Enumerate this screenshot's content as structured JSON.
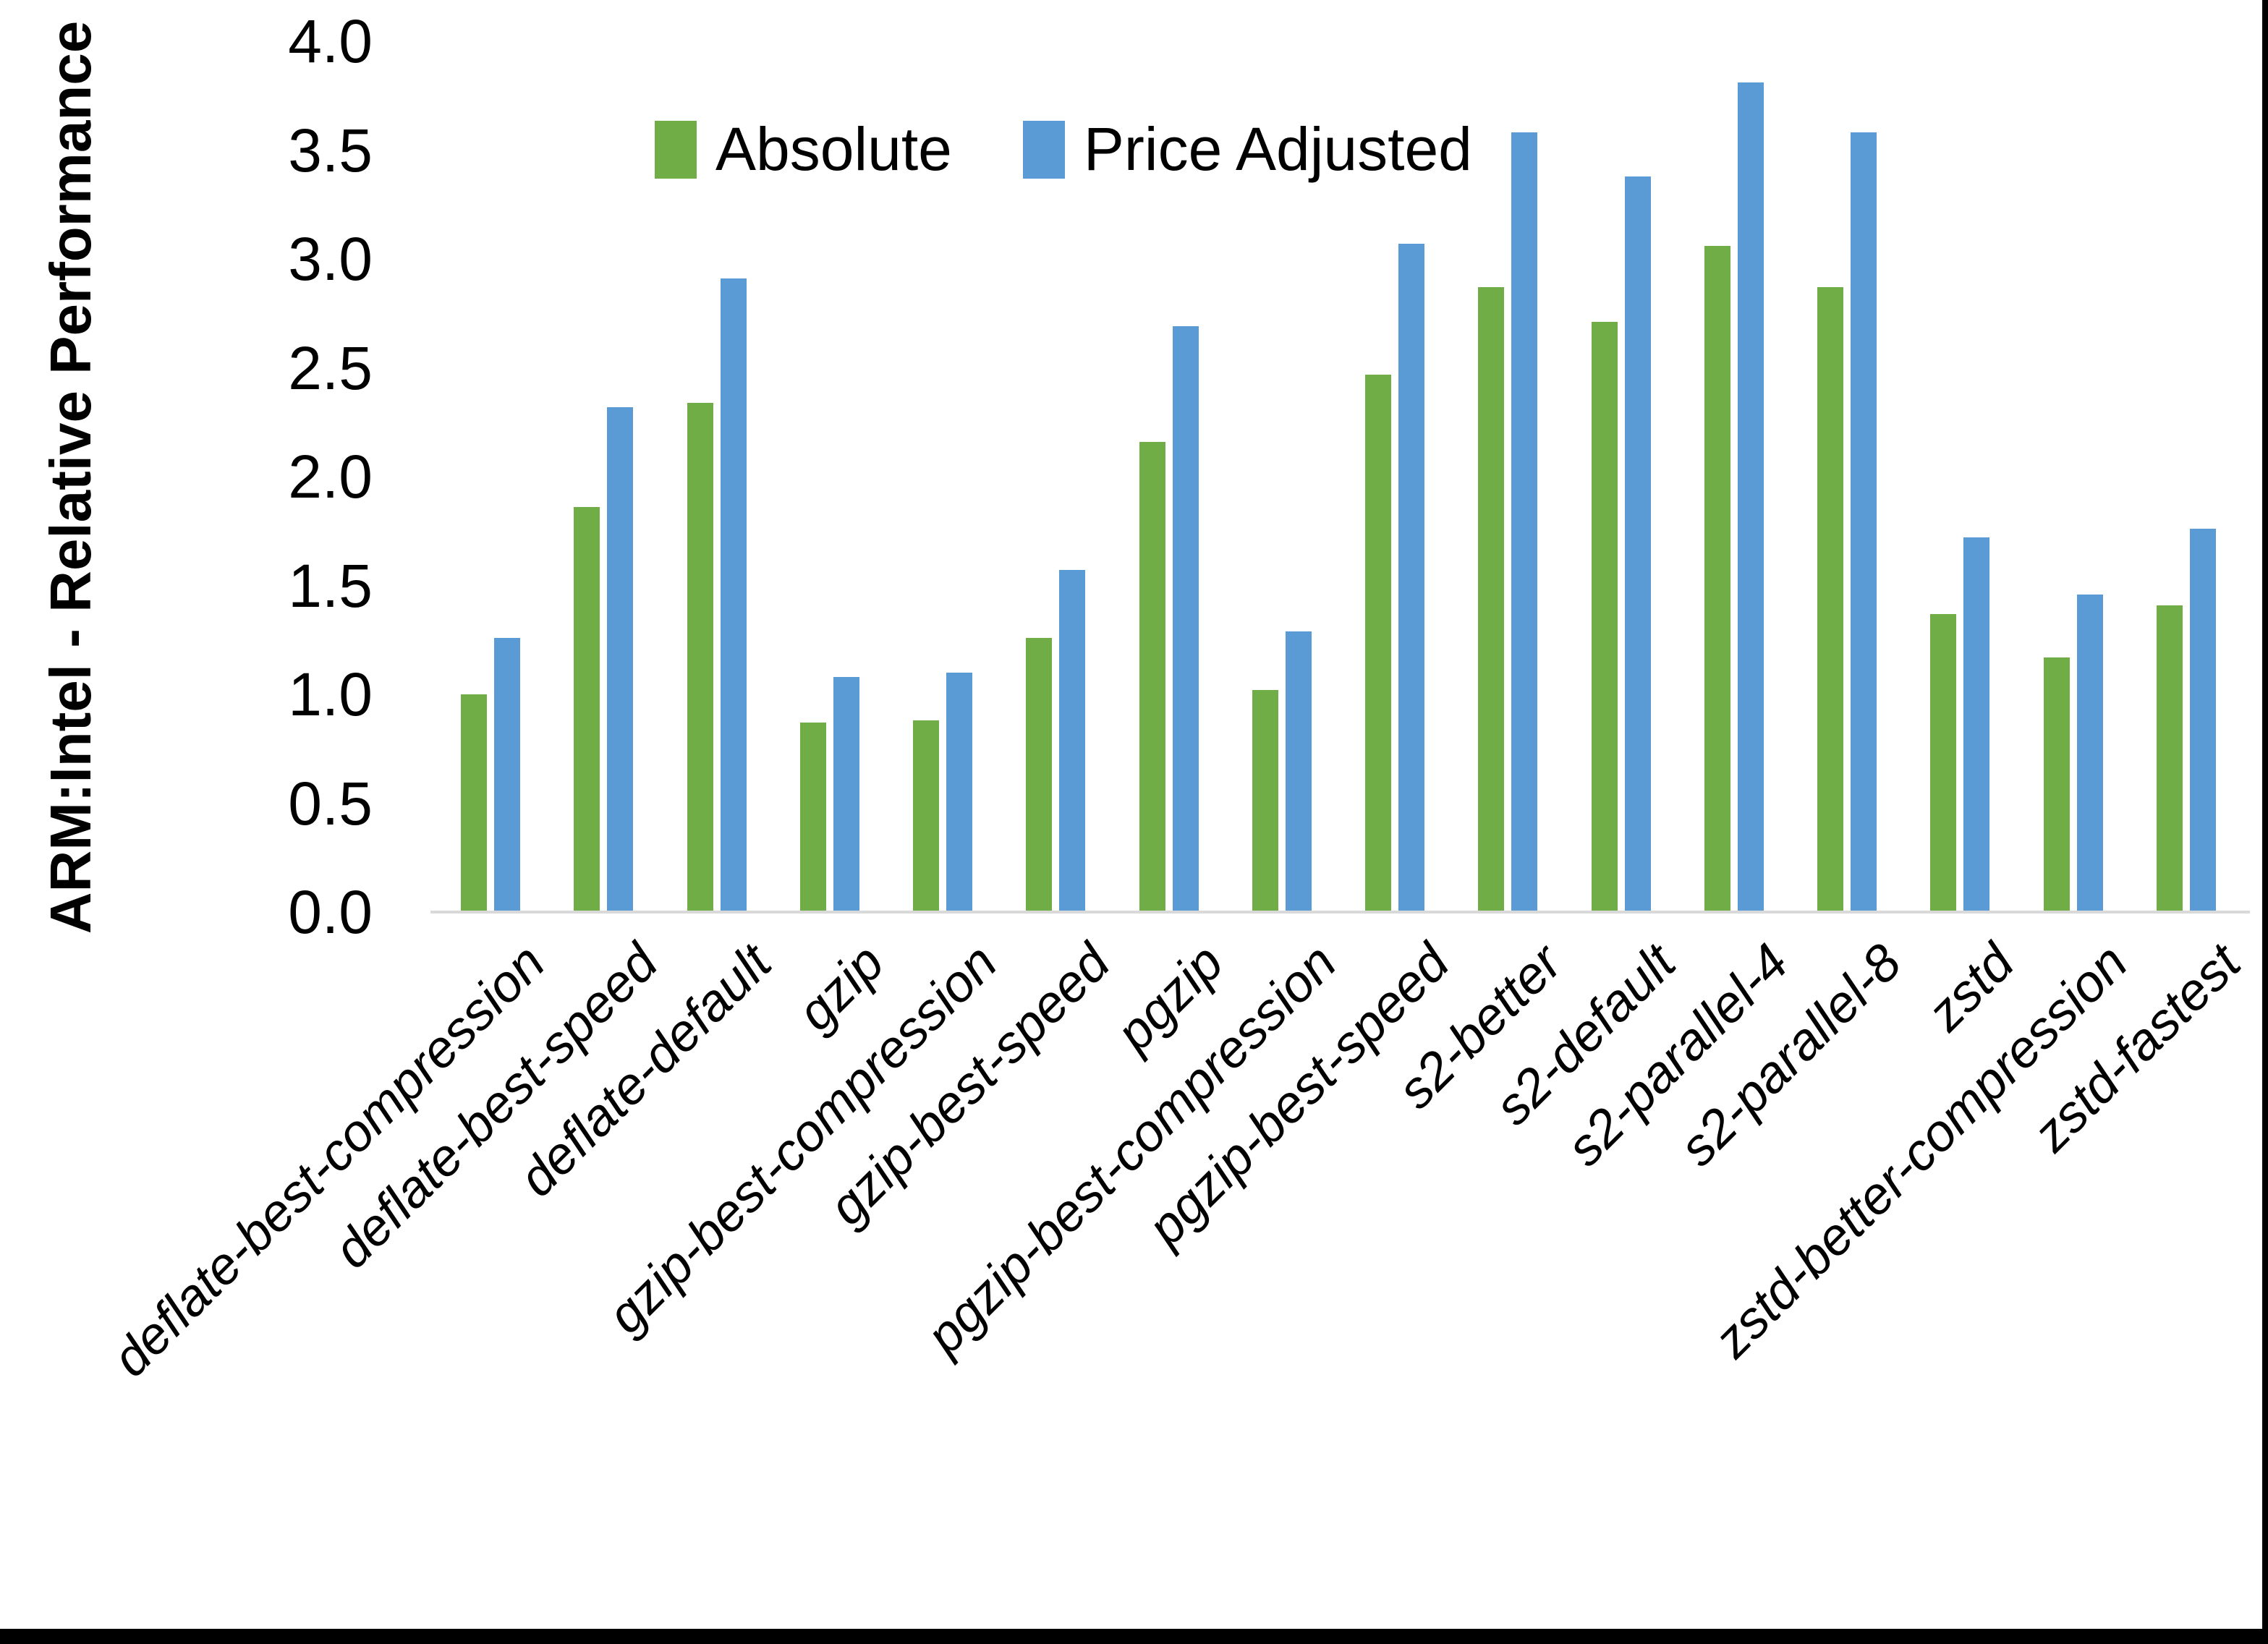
{
  "chart_data": {
    "type": "bar",
    "title": "",
    "ylabel": "ARM:Intel - Relative Performance",
    "xlabel": "",
    "ylim": [
      0.0,
      4.0
    ],
    "yticks": [
      "0.0",
      "0.5",
      "1.0",
      "1.5",
      "2.0",
      "2.5",
      "3.0",
      "3.5",
      "4.0"
    ],
    "grid": false,
    "legend_position": "top-center",
    "categories": [
      "deflate-best-compression",
      "deflate-best-speed",
      "deflate-default",
      "gzip",
      "gzip-best-compression",
      "gzip-best-speed",
      "pgzip",
      "pgzip-best-compression",
      "pgzip-best-speed",
      "s2-better",
      "s2-default",
      "s2-parallel-4",
      "s2-parallel-8",
      "zstd",
      "zstd-better-compression",
      "zstd-fastest"
    ],
    "series": [
      {
        "name": "Absolute",
        "color": "#70AD47",
        "values": [
          1.0,
          1.86,
          2.34,
          0.87,
          0.88,
          1.26,
          2.16,
          1.02,
          2.47,
          2.87,
          2.71,
          3.06,
          2.87,
          1.37,
          1.17,
          1.41
        ]
      },
      {
        "name": "Price Adjusted",
        "color": "#5B9BD5",
        "values": [
          1.26,
          2.32,
          2.91,
          1.08,
          1.1,
          1.57,
          2.69,
          1.29,
          3.07,
          3.58,
          3.38,
          3.81,
          3.58,
          1.72,
          1.46,
          1.76
        ]
      }
    ],
    "axis_line_color": "#D9D9D9",
    "text_color": "#000000"
  }
}
